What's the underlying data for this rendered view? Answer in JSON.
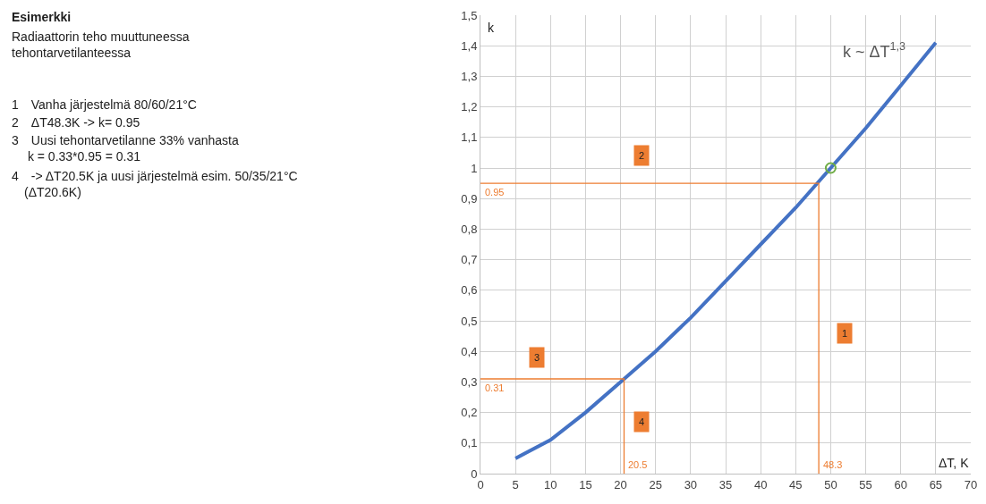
{
  "chart_data": {
    "type": "line",
    "title": "Esimerkki",
    "subtitle": "Radiaattorin teho muuttuneessa\ntehontarvetilanteessa",
    "xlabel": "ΔT, K",
    "ylabel": "k",
    "series": [
      {
        "color": "#4472c4",
        "x": [
          5,
          10,
          15,
          20,
          25,
          30,
          35,
          40,
          45,
          50,
          55,
          60,
          65
        ],
        "values": [
          0.05,
          0.11,
          0.2,
          0.3,
          0.4,
          0.51,
          0.63,
          0.75,
          0.87,
          1.0,
          1.13,
          1.27,
          1.41
        ]
      },
      {
        "color": "#ed7d31",
        "x": [
          0,
          48.3,
          48.3
        ],
        "values": [
          0.95,
          0.95,
          0
        ]
      },
      {
        "color": "#ed7d31",
        "x": [
          0,
          20.5,
          20.5
        ],
        "values": [
          0.31,
          0.31,
          0
        ]
      },
      {
        "type": "scatter",
        "color": "#70ad47",
        "marker": "circle",
        "x": [
          50
        ],
        "values": [
          1.0
        ]
      }
    ],
    "xlim": [
      0,
      70
    ],
    "xticks": [
      0,
      5,
      10,
      15,
      20,
      25,
      30,
      35,
      40,
      45,
      50,
      55,
      60,
      65,
      70
    ],
    "ylim": [
      0,
      1.5
    ],
    "yticks": [
      0,
      {
        "value": 0.1,
        "label": "0,1"
      },
      {
        "value": 0.2,
        "label": "0,2"
      },
      {
        "value": 0.3,
        "label": "0,3"
      },
      {
        "value": 0.4,
        "label": "0,4"
      },
      {
        "value": 0.5,
        "label": "0,5"
      },
      {
        "value": 0.6,
        "label": "0,6"
      },
      {
        "value": 0.7,
        "label": "0,7"
      },
      {
        "value": 0.8,
        "label": "0,8"
      },
      {
        "value": 0.9,
        "label": "0,9"
      },
      1,
      {
        "value": 1.1,
        "label": "1,1"
      },
      {
        "value": 1.2,
        "label": "1,2"
      },
      {
        "value": 1.3,
        "label": "1,3"
      },
      {
        "value": 1.4,
        "label": "1,4"
      },
      {
        "value": 1.5,
        "label": "1,5"
      }
    ],
    "grid": true,
    "annotations": [
      "1 Vanha järjestelmä 80/60/21°C",
      "2 ΔT48.3K -> k= 0.95",
      "3 Uusi tehontarvetilanne 33% vanhasta\n  k = 0.33*0.95 = 0.31",
      "4 -> ΔT20.5K ja uusi järjestelmä esim. 50/35/21°C\n (ΔT20.6K)",
      "k ~ ΔT$^{1,3}$",
      {
        "text": "0.95",
        "x": 0,
        "y": 0.95
      },
      {
        "text": "0.31",
        "x": 0,
        "y": 0.31
      },
      {
        "text": "20.5",
        "x": 20.5,
        "y": 0
      },
      {
        "text": "48.3",
        "x": 48.3,
        "y": 0
      },
      {
        "text": "1",
        "x": 52,
        "y": 0.46
      },
      {
        "text": "2",
        "x": 23,
        "y": 1.04
      },
      {
        "text": "3",
        "x": 8,
        "y": 0.38
      },
      {
        "text": "4",
        "x": 23,
        "y": 0.17
      }
    ]
  }
}
